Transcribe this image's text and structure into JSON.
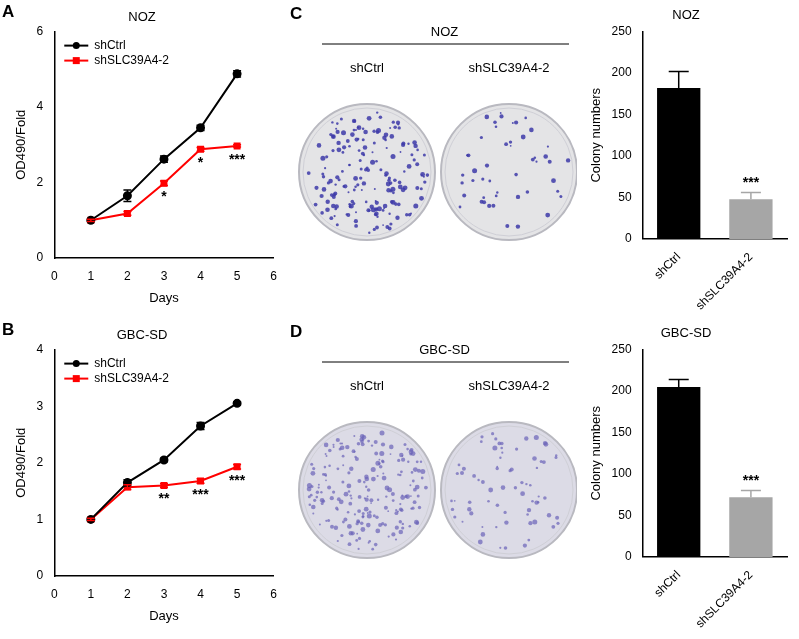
{
  "chart_data": [
    {
      "panel": "A",
      "type": "line",
      "title": "NOZ",
      "x_label": "Days",
      "y_label": "OD490/Fold",
      "xlim": [
        0,
        6
      ],
      "xticks": [
        0,
        1,
        2,
        3,
        4,
        5,
        6
      ],
      "ylim": [
        0,
        6
      ],
      "yticks": [
        0,
        2,
        4,
        6
      ],
      "grid": false,
      "legend": "upper left",
      "x": [
        1,
        2,
        3,
        4,
        5
      ],
      "series": [
        {
          "name": "shCtrl",
          "color": "#000000",
          "marker": "circle",
          "values": [
            1,
            1.65,
            2.62,
            3.45,
            4.88
          ],
          "errors": [
            0.02,
            0.15,
            0.08,
            0.07,
            0.08
          ]
        },
        {
          "name": "shSLC39A4-2",
          "color": "#ff0000",
          "marker": "square",
          "values": [
            1,
            1.18,
            1.98,
            2.88,
            2.97
          ],
          "errors": [
            0.03,
            0.05,
            0.06,
            0.05,
            0.03
          ]
        }
      ],
      "annotations": [
        {
          "x": 3,
          "text": "*"
        },
        {
          "x": 4,
          "text": "*"
        },
        {
          "x": 5,
          "text": "***"
        }
      ]
    },
    {
      "panel": "B",
      "type": "line",
      "title": "GBC-SD",
      "x_label": "Days",
      "y_label": "OD490/Fold",
      "xlim": [
        0,
        6
      ],
      "xticks": [
        0,
        1,
        2,
        3,
        4,
        5,
        6
      ],
      "ylim": [
        0,
        4
      ],
      "yticks": [
        0,
        1,
        2,
        3,
        4
      ],
      "grid": false,
      "legend": "upper left",
      "x": [
        1,
        2,
        3,
        4,
        5
      ],
      "series": [
        {
          "name": "shCtrl",
          "color": "#000000",
          "marker": "circle",
          "values": [
            1,
            1.65,
            2.05,
            2.65,
            3.05
          ],
          "errors": [
            0.02,
            0.05,
            0.03,
            0.06,
            0.03
          ]
        },
        {
          "name": "shSLC39A4-2",
          "color": "#ff0000",
          "marker": "square",
          "values": [
            1,
            1.57,
            1.6,
            1.68,
            1.93
          ],
          "errors": [
            0.02,
            0.04,
            0.03,
            0.04,
            0.04
          ]
        }
      ],
      "annotations": [
        {
          "x": 3,
          "text": "**"
        },
        {
          "x": 4,
          "text": "***"
        },
        {
          "x": 5,
          "text": "***"
        }
      ]
    },
    {
      "type": "bar",
      "title": "NOZ",
      "y_label": "Colony numbers",
      "categories": [
        "shCtrl",
        "shSLC39A4-2"
      ],
      "values": [
        182,
        48
      ],
      "errors": [
        20,
        8
      ],
      "colors": [
        "#000000",
        "#a6a6a6"
      ],
      "ylim": [
        0,
        250
      ],
      "yticks": [
        0,
        50,
        100,
        150,
        200,
        250
      ],
      "grid": false,
      "annotations": [
        {
          "category": "shSLC39A4-2",
          "text": "***"
        }
      ]
    },
    {
      "type": "bar",
      "title": "GBC-SD",
      "y_label": "Colony numbers",
      "categories": [
        "shCtrl",
        "shSLC39A4-2"
      ],
      "values": [
        205,
        72
      ],
      "errors": [
        9,
        8
      ],
      "colors": [
        "#000000",
        "#a6a6a6"
      ],
      "ylim": [
        0,
        250
      ],
      "yticks": [
        0,
        50,
        100,
        150,
        200,
        250
      ],
      "grid": false,
      "annotations": [
        {
          "category": "shSLC39A4-2",
          "text": "***"
        }
      ]
    }
  ],
  "images": [
    {
      "panel": "C",
      "title": "NOZ",
      "labels": [
        "shCtrl",
        "shSLC39A4-2"
      ]
    },
    {
      "panel": "D",
      "title": "GBC-SD",
      "labels": [
        "shCtrl",
        "shSLC39A4-2"
      ]
    }
  ]
}
